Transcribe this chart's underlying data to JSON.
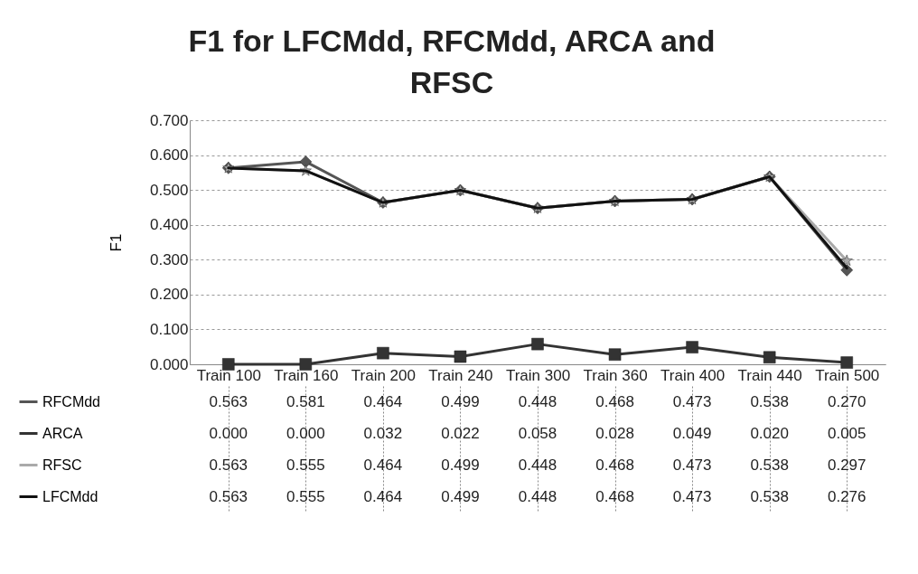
{
  "chart_data": {
    "type": "line",
    "title": "F1 for LFCMdd, RFCMdd, ARCA and RFSC",
    "ylabel": "F1",
    "categories": [
      "Train 100",
      "Train 160",
      "Train 200",
      "Train 240",
      "Train 300",
      "Train 360",
      "Train 400",
      "Train 440",
      "Train 500"
    ],
    "series": [
      {
        "name": "RFCMdd",
        "color": "#555555",
        "marker": "diamond",
        "values": [
          0.563,
          0.581,
          0.464,
          0.499,
          0.448,
          0.468,
          0.473,
          0.538,
          0.27
        ],
        "value_labels": [
          "0.563",
          "0.581",
          "0.464",
          "0.499",
          "0.448",
          "0.468",
          "0.473",
          "0.538",
          "0.270"
        ]
      },
      {
        "name": "ARCA",
        "color": "#333333",
        "marker": "square",
        "values": [
          0.0,
          0.0,
          0.032,
          0.022,
          0.058,
          0.028,
          0.049,
          0.02,
          0.005
        ],
        "value_labels": [
          "0.000",
          "0.000",
          "0.032",
          "0.022",
          "0.058",
          "0.028",
          "0.049",
          "0.020",
          "0.005"
        ]
      },
      {
        "name": "RFSC",
        "color": "#aaaaaa",
        "marker": "star",
        "values": [
          0.563,
          0.555,
          0.464,
          0.499,
          0.448,
          0.468,
          0.473,
          0.538,
          0.297
        ],
        "value_labels": [
          "0.563",
          "0.555",
          "0.464",
          "0.499",
          "0.448",
          "0.468",
          "0.473",
          "0.538",
          "0.297"
        ]
      },
      {
        "name": "LFCMdd",
        "color": "#111111",
        "marker": "none",
        "values": [
          0.563,
          0.555,
          0.464,
          0.499,
          0.448,
          0.468,
          0.473,
          0.538,
          0.276
        ],
        "value_labels": [
          "0.563",
          "0.555",
          "0.464",
          "0.499",
          "0.448",
          "0.468",
          "0.473",
          "0.538",
          "0.276"
        ]
      }
    ],
    "ylim": [
      0,
      0.7
    ],
    "yticks": [
      {
        "value": 0,
        "label": "0.000"
      },
      {
        "value": 0.1,
        "label": "0.100"
      },
      {
        "value": 0.2,
        "label": "0.200"
      },
      {
        "value": 0.3,
        "label": "0.300"
      },
      {
        "value": 0.4,
        "label": "0.400"
      },
      {
        "value": 0.5,
        "label": "0.500"
      },
      {
        "value": 0.6,
        "label": "0.600"
      },
      {
        "value": 0.7,
        "label": "0.700"
      }
    ],
    "grid": "y",
    "legend": "bottom",
    "line_style": "solid"
  }
}
